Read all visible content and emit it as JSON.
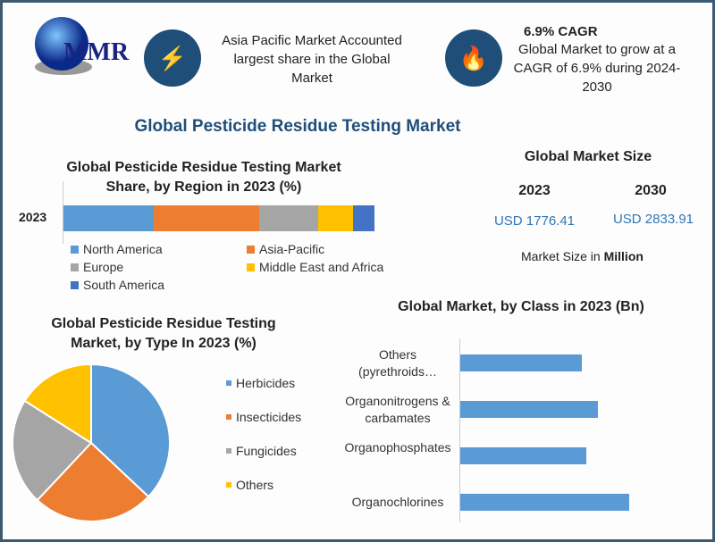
{
  "logo": {
    "text": "MMR"
  },
  "header": {
    "card1": {
      "icon": "lightning-bolt-icon",
      "text": "Asia Pacific Market Accounted largest share in the Global Market"
    },
    "card2": {
      "icon": "flame-icon",
      "title": "6.9% CAGR",
      "text": "Global Market to grow at a CAGR of 6.9% during 2024-2030"
    }
  },
  "main_title": "Global Pesticide Residue Testing Market",
  "market_size": {
    "title": "Global Market Size",
    "years": [
      "2023",
      "2030"
    ],
    "values": [
      "USD 1776.41",
      "USD 2833.91"
    ],
    "unit_prefix": "Market Size in ",
    "unit": "Million"
  },
  "colors": {
    "blue": "#5b9bd5",
    "orange": "#ed7d31",
    "gray": "#a5a5a5",
    "yellow": "#ffc000",
    "darkblue": "#4472c4",
    "accent": "#1f4e79"
  },
  "chart_data": [
    {
      "type": "bar",
      "orientation": "horizontal-stacked",
      "title": "Global Pesticide Residue Testing Market Share, by Region in 2023 (%)",
      "categories": [
        "2023"
      ],
      "series": [
        {
          "name": "North America",
          "values": [
            29
          ],
          "color": "#5b9bd5"
        },
        {
          "name": "Asia-Pacific",
          "values": [
            34
          ],
          "color": "#ed7d31"
        },
        {
          "name": "Europe",
          "values": [
            19
          ],
          "color": "#a5a5a5"
        },
        {
          "name": "Middle East and Africa",
          "values": [
            11
          ],
          "color": "#ffc000"
        },
        {
          "name": "South America",
          "values": [
            7
          ],
          "color": "#4472c4"
        }
      ],
      "legend": "bottom"
    },
    {
      "type": "pie",
      "title": "Global Pesticide Residue Testing Market, by Type In 2023 (%)",
      "slices": [
        {
          "name": "Herbicides",
          "value": 37,
          "color": "#5b9bd5"
        },
        {
          "name": "Insecticides",
          "value": 25,
          "color": "#ed7d31"
        },
        {
          "name": "Fungicides",
          "value": 22,
          "color": "#a5a5a5"
        },
        {
          "name": "Others",
          "value": 16,
          "color": "#ffc000"
        }
      ],
      "legend": "right"
    },
    {
      "type": "bar",
      "orientation": "horizontal",
      "title": "Global Market, by Class in 2023 (Bn)",
      "categories": [
        "Others (pyrethroids…",
        "Organonitrogens & carbamates",
        "Organophosphates",
        "Organochlorines"
      ],
      "values": [
        136,
        154,
        141,
        189
      ],
      "color": "#5b9bd5"
    }
  ]
}
